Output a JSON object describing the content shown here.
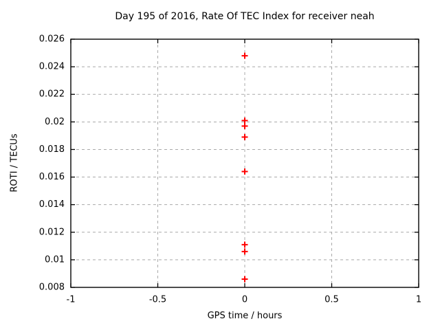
{
  "chart_data": {
    "type": "scatter",
    "title": "Day 195 of 2016, Rate Of TEC Index for receiver neah",
    "xlabel": "GPS time / hours",
    "ylabel": "ROTI / TECUs",
    "xlim": [
      -1,
      1
    ],
    "ylim": [
      0.008,
      0.026
    ],
    "xticks": {
      "values": [
        -1,
        -0.5,
        0,
        0.5,
        1
      ],
      "labels": [
        "-1",
        "-0.5",
        "0",
        "0.5",
        "1"
      ]
    },
    "yticks": {
      "values": [
        0.008,
        0.01,
        0.012,
        0.014,
        0.016,
        0.018,
        0.02,
        0.022,
        0.024,
        0.026
      ],
      "labels": [
        "0.008",
        "0.01",
        "0.012",
        "0.014",
        "0.016",
        "0.018",
        "0.02",
        "0.022",
        "0.024",
        "0.026"
      ]
    },
    "grid": true,
    "legend": "none",
    "series": [
      {
        "name": "ROTI",
        "marker": "plus",
        "color": "#ff0000",
        "points": [
          {
            "x": 0,
            "y": 0.0248
          },
          {
            "x": 0,
            "y": 0.0201
          },
          {
            "x": 0,
            "y": 0.0197
          },
          {
            "x": 0,
            "y": 0.0189
          },
          {
            "x": 0,
            "y": 0.0164
          },
          {
            "x": 0,
            "y": 0.0111
          },
          {
            "x": 0,
            "y": 0.0106
          },
          {
            "x": 0,
            "y": 0.0086
          }
        ]
      }
    ]
  },
  "colors": {
    "background": "#ffffff",
    "frame": "#000000",
    "grid": "#a8a8a8",
    "text": "#000000",
    "marker": "#ff0000"
  }
}
